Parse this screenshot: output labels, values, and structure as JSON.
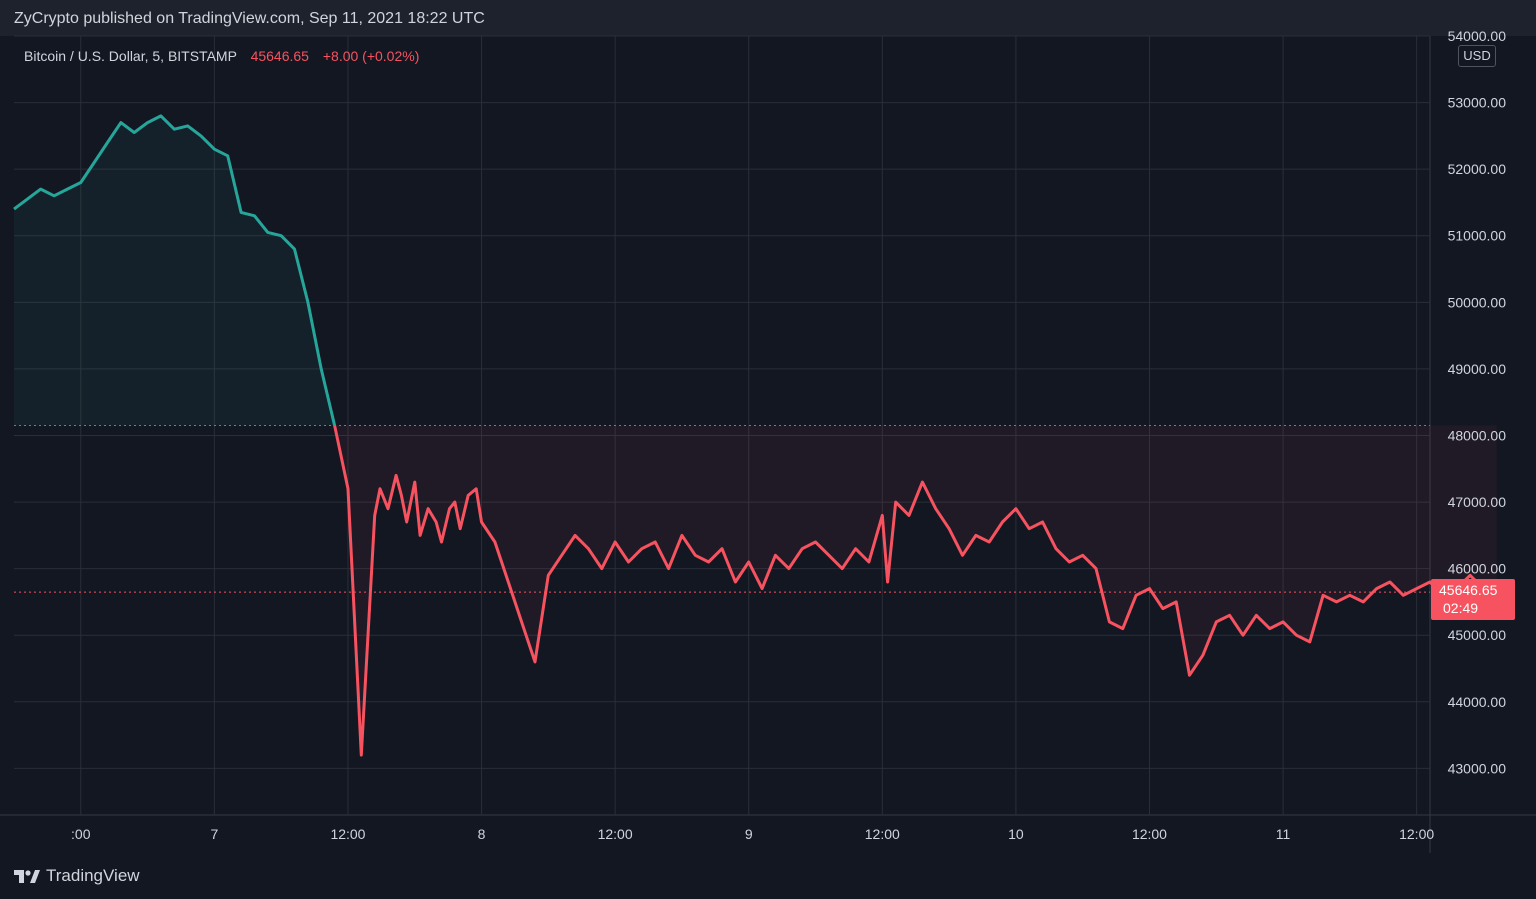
{
  "header": {
    "publisher": "ZyCrypto published on TradingView.com, Sep 11, 2021 18:22 UTC"
  },
  "legend": {
    "symbol": "Bitcoin / U.S. Dollar, 5, BITSTAMP",
    "price": "45646.65",
    "change": "+8.00 (+0.02%)"
  },
  "currency_label": "USD",
  "price_label": {
    "value": "45646.65",
    "countdown": "02:49"
  },
  "brand": "TradingView",
  "colors": {
    "up": "#26a69a",
    "down": "#f7525f",
    "grid": "#2a2e39",
    "background": "#131722"
  },
  "chart_data": {
    "type": "line",
    "reference_price": 48150,
    "last_price": 45646.65,
    "ylim": [
      42300,
      54000
    ],
    "y_ticks": [
      43000,
      44000,
      45000,
      46000,
      47000,
      48000,
      49000,
      50000,
      51000,
      52000,
      53000,
      54000
    ],
    "y_tick_labels": [
      "43000.00",
      "44000.00",
      "45000.00",
      "46000.00",
      "47000.00",
      "48000.00",
      "49000.00",
      "50000.00",
      "51000.00",
      "52000.00",
      "53000.00",
      "54000.00"
    ],
    "xlim": [
      -0.25,
      5.05
    ],
    "x_ticks": [
      0,
      0.5,
      1,
      1.5,
      2,
      2.5,
      3,
      3.5,
      4,
      4.5,
      5
    ],
    "x_tick_labels": [
      ":00",
      "7",
      "12:00",
      "8",
      "12:00",
      "9",
      "12:00",
      "10",
      "12:00",
      "11",
      "12:00"
    ],
    "series": [
      {
        "x": [
          -0.25,
          -0.2,
          -0.15,
          -0.1,
          -0.05,
          0,
          0.05,
          0.1,
          0.15,
          0.2,
          0.25,
          0.3,
          0.35,
          0.4,
          0.45,
          0.5,
          0.55,
          0.6,
          0.65,
          0.7,
          0.75,
          0.8,
          0.85,
          0.9,
          0.95,
          1,
          1.05,
          1.1,
          1.12,
          1.15,
          1.18,
          1.2,
          1.22,
          1.25,
          1.27,
          1.3,
          1.33,
          1.35,
          1.38,
          1.4,
          1.42,
          1.45,
          1.48,
          1.5,
          1.55,
          1.6,
          1.65,
          1.7,
          1.75,
          1.8,
          1.85,
          1.9,
          1.95,
          2,
          2.05,
          2.1,
          2.15,
          2.2,
          2.25,
          2.3,
          2.35,
          2.4,
          2.45,
          2.5,
          2.55,
          2.6,
          2.65,
          2.7,
          2.75,
          2.8,
          2.85,
          2.9,
          2.95,
          3,
          3.02,
          3.05,
          3.1,
          3.15,
          3.2,
          3.25,
          3.3,
          3.35,
          3.4,
          3.45,
          3.5,
          3.55,
          3.6,
          3.65,
          3.7,
          3.75,
          3.8,
          3.85,
          3.9,
          3.95,
          4,
          4.05,
          4.1,
          4.15,
          4.2,
          4.25,
          4.3,
          4.35,
          4.4,
          4.45,
          4.5,
          4.55,
          4.6,
          4.65,
          4.7,
          4.75,
          4.8,
          4.85,
          4.9,
          4.95,
          5,
          5.05,
          5.1,
          5.15,
          5.2,
          5.25,
          5.3
        ],
        "y": [
          51400,
          51550,
          51700,
          51600,
          51700,
          51800,
          52100,
          52400,
          52700,
          52550,
          52700,
          52800,
          52600,
          52650,
          52500,
          52300,
          52200,
          51350,
          51300,
          51050,
          51000,
          50800,
          50000,
          49000,
          48150,
          47200,
          43200,
          46800,
          47200,
          46900,
          47400,
          47100,
          46700,
          47300,
          46500,
          46900,
          46700,
          46400,
          46900,
          47000,
          46600,
          47100,
          47200,
          46700,
          46400,
          45800,
          45200,
          44600,
          45900,
          46200,
          46500,
          46300,
          46000,
          46400,
          46100,
          46300,
          46400,
          46000,
          46500,
          46200,
          46100,
          46300,
          45800,
          46100,
          45700,
          46200,
          46000,
          46300,
          46400,
          46200,
          46000,
          46300,
          46100,
          46800,
          45800,
          47000,
          46800,
          47300,
          46900,
          46600,
          46200,
          46500,
          46400,
          46700,
          46900,
          46600,
          46700,
          46300,
          46100,
          46200,
          46000,
          45200,
          45100,
          45600,
          45700,
          45400,
          45500,
          44400,
          44700,
          45200,
          45300,
          45000,
          45300,
          45100,
          45200,
          45000,
          44900,
          45600,
          45500,
          45600,
          45500,
          45700,
          45800,
          45600,
          45700,
          45800,
          45600,
          45700,
          45900,
          45700,
          45650
        ]
      }
    ]
  }
}
